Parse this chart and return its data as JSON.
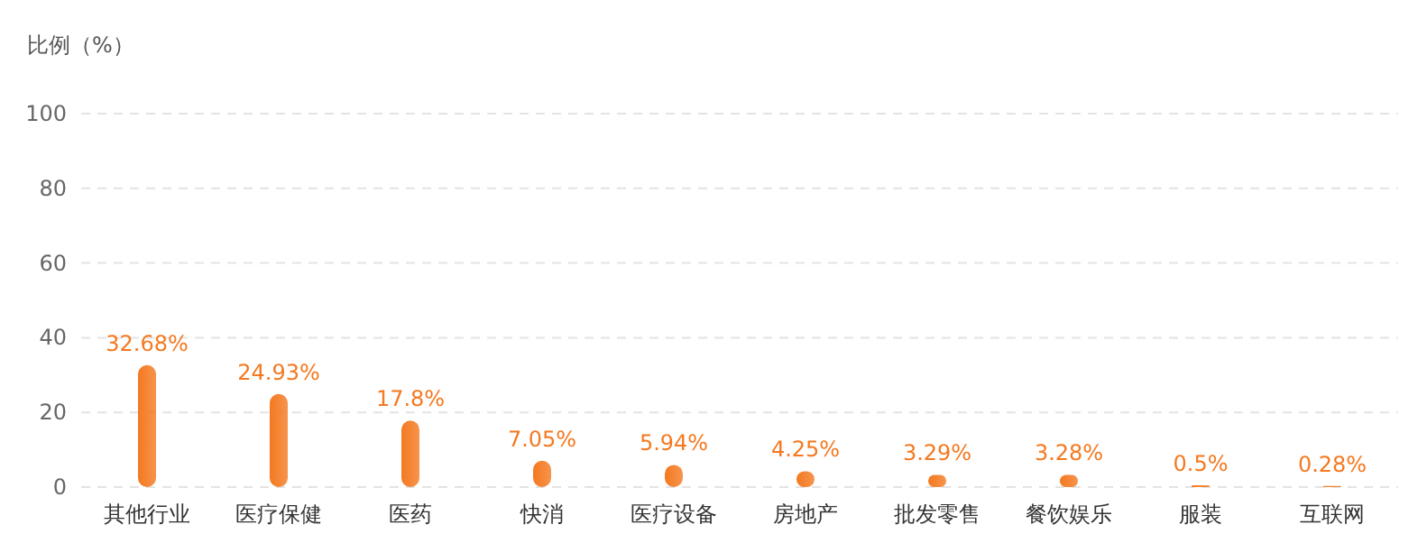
{
  "chart_data": {
    "type": "bar",
    "ylabel": "比例（%）",
    "categories": [
      "其他行业",
      "医疗保健",
      "医药",
      "快消",
      "医疗设备",
      "房地产",
      "批发零售",
      "餐饮娱乐",
      "服装",
      "互联网"
    ],
    "values": [
      32.68,
      24.93,
      17.8,
      7.05,
      5.94,
      4.25,
      3.29,
      3.28,
      0.5,
      0.28
    ],
    "value_labels": [
      "32.68%",
      "24.93%",
      "17.8%",
      "7.05%",
      "5.94%",
      "4.25%",
      "3.29%",
      "3.28%",
      "0.5%",
      "0.28%"
    ],
    "color": "#f47920",
    "ylim": [
      0,
      100
    ],
    "yticks": [
      0,
      20,
      40,
      60,
      80,
      100
    ],
    "grid": "y"
  }
}
